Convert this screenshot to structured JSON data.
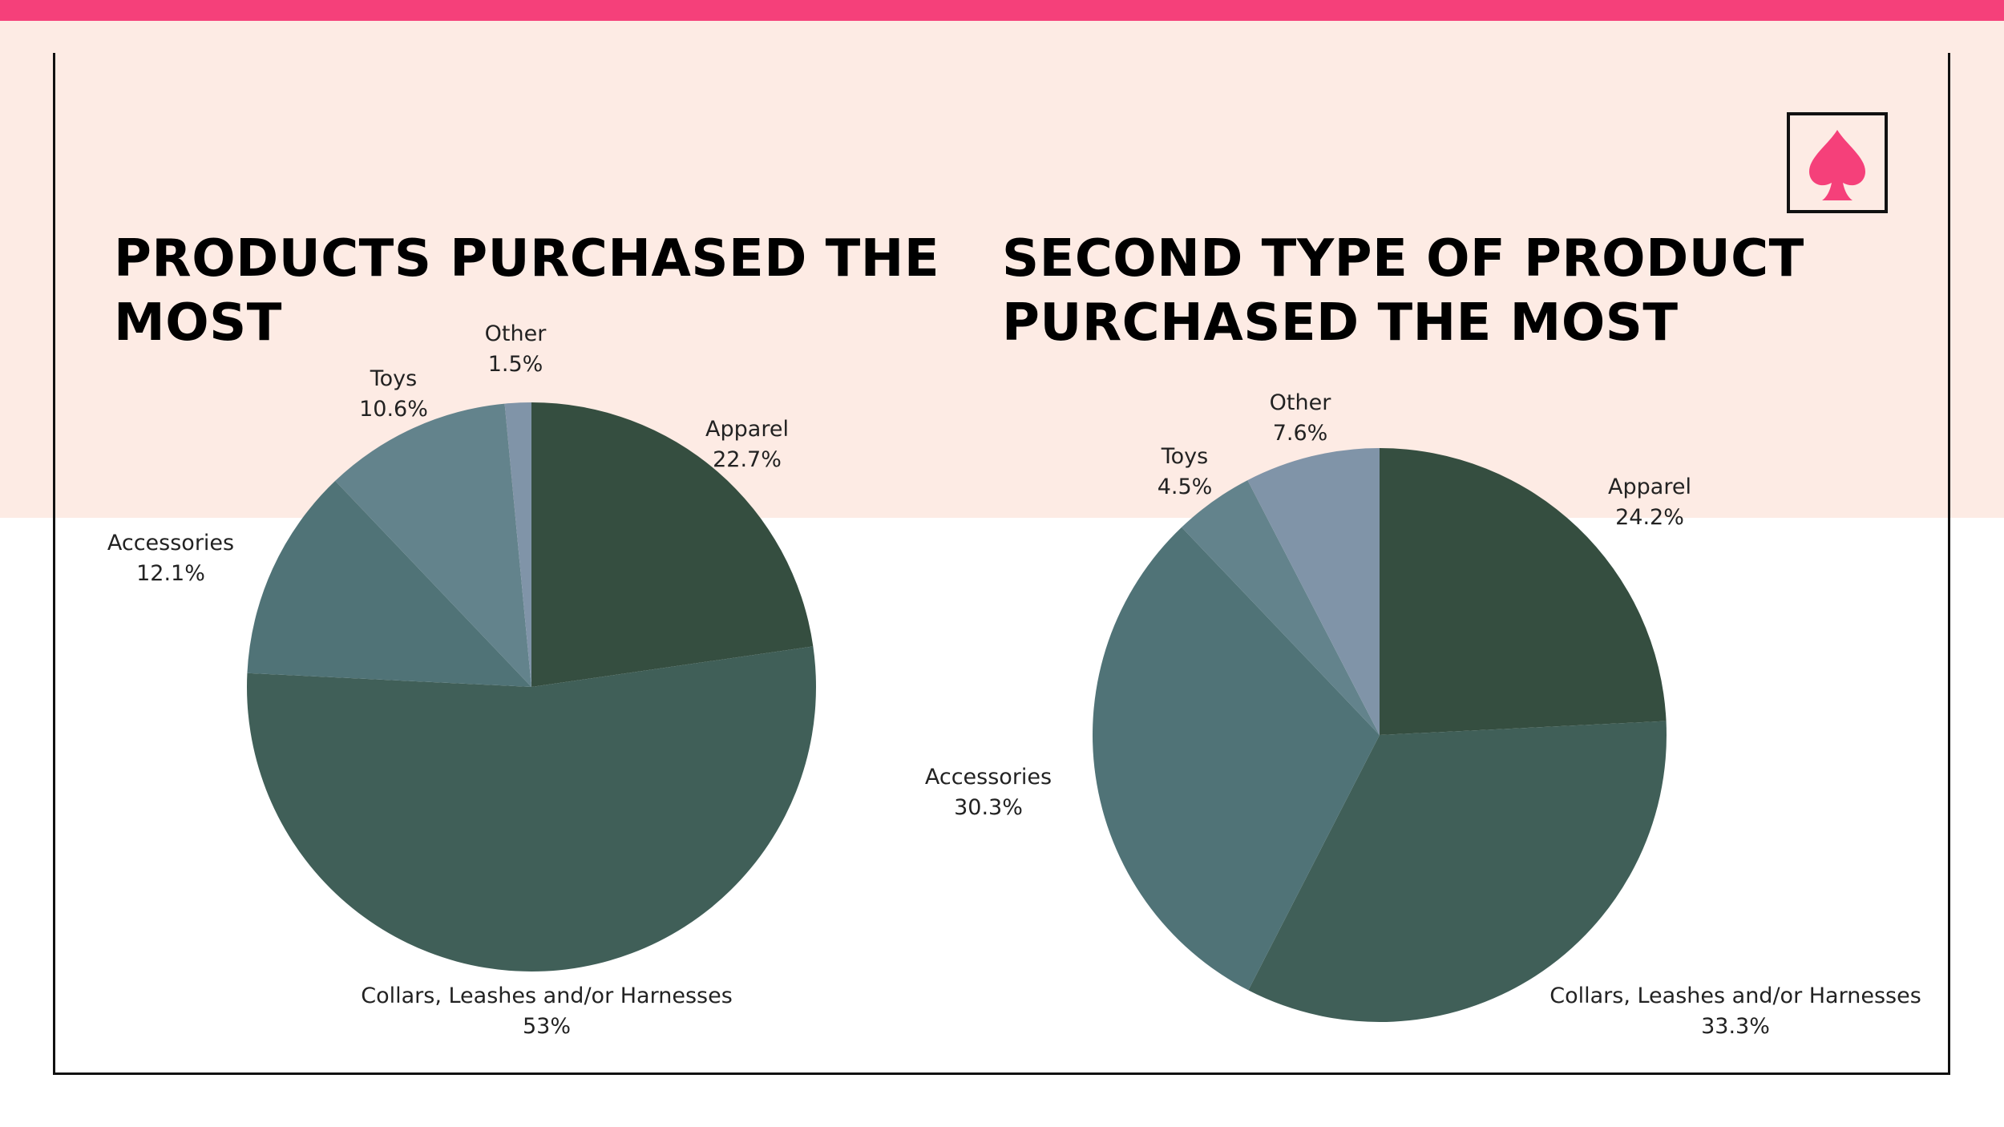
{
  "titles": {
    "left_line1": "PRODUCTS PURCHASED THE",
    "left_line2": "MOST",
    "right_line1": "SECOND TYPE OF PRODUCT",
    "right_line2": "PURCHASED THE MOST"
  },
  "logo": {
    "icon": "spade-icon",
    "color": "#f5407a"
  },
  "colors": {
    "topbar": "#f5407a",
    "peach": "#fdebe4"
  },
  "chart_data": [
    {
      "type": "pie",
      "title": "PRODUCTS PURCHASED THE MOST",
      "start": "12 o'clock, clockwise",
      "labels": [
        "Apparel",
        "Collars, Leashes and/or Harnesses",
        "Accessories",
        "Toys",
        "Other"
      ],
      "values": [
        22.7,
        53,
        12.1,
        10.6,
        1.5
      ],
      "value_labels": [
        "22.7%",
        "53%",
        "12.1%",
        "10.6%",
        "1.5%"
      ],
      "colors": [
        "#354e40",
        "#405f58",
        "#507377",
        "#63838c",
        "#8094a8"
      ]
    },
    {
      "type": "pie",
      "title": "SECOND TYPE OF PRODUCT PURCHASED THE MOST",
      "start": "12 o'clock, clockwise",
      "labels": [
        "Apparel",
        "Collars, Leashes and/or Harnesses",
        "Accessories",
        "Toys",
        "Other"
      ],
      "values": [
        24.2,
        33.3,
        30.3,
        4.5,
        7.6
      ],
      "value_labels": [
        "24.2%",
        "33.3%",
        "30.3%",
        "4.5%",
        "7.6%"
      ],
      "colors": [
        "#354e40",
        "#405f58",
        "#507377",
        "#63838c",
        "#8094a8"
      ]
    }
  ]
}
